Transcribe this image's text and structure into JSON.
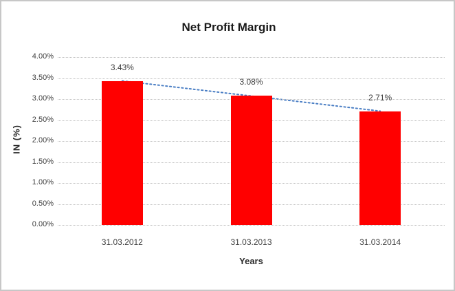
{
  "chart": {
    "title": "Net Profit Margin",
    "y_axis_title": "IN (%)",
    "x_axis_title": "Years",
    "colors": {
      "bar": "#ff0000",
      "trendline": "#4a7ec4",
      "gridline": "#bfbfbf",
      "text": "#404040"
    }
  },
  "chart_data": {
    "type": "bar",
    "title": "Net Profit Margin",
    "xlabel": "Years",
    "ylabel": "IN (%)",
    "categories": [
      "31.03.2012",
      "31.03.2013",
      "31.03.2014"
    ],
    "values": [
      3.43,
      3.08,
      2.71
    ],
    "data_labels": [
      "3.43%",
      "3.08%",
      "2.71%"
    ],
    "ylim": [
      0,
      4
    ],
    "ytick_step": 0.5,
    "ytick_labels": [
      "0.00%",
      "0.50%",
      "1.00%",
      "1.50%",
      "2.00%",
      "2.50%",
      "3.00%",
      "3.50%",
      "4.00%"
    ],
    "grid": true,
    "legend": false,
    "trendline": {
      "type": "linear",
      "style": "dotted"
    }
  }
}
